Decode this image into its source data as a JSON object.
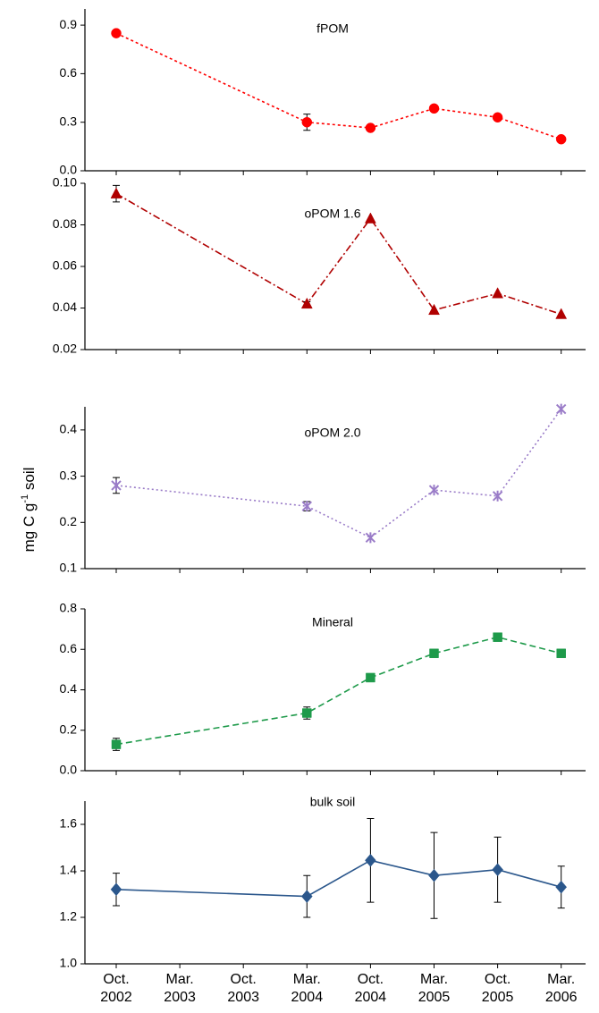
{
  "y_label": {
    "text": "mg C g",
    "sup": "-1",
    "rest": " soil"
  },
  "categories": [
    "Oct. 2002",
    "Mar. 2003",
    "Oct. 2003",
    "Mar. 2004",
    "Oct. 2004",
    "Mar. 2005",
    "Oct. 2005",
    "Mar. 2006"
  ],
  "chart_data": [
    {
      "type": "line",
      "title": "fPOM",
      "color": "#ff0000",
      "marker": "circle",
      "dash": "3 3",
      "x": [
        "Oct. 2002",
        "Mar. 2004",
        "Oct. 2004",
        "Mar. 2005",
        "Oct. 2005",
        "Mar. 2006"
      ],
      "values": [
        0.85,
        0.3,
        0.265,
        0.385,
        0.33,
        0.195
      ],
      "errors": [
        0.01,
        0.05,
        null,
        null,
        null,
        null
      ],
      "ylim": [
        0,
        1.0
      ],
      "yticks": [
        {
          "value": 0,
          "label": "0.0"
        },
        0.3,
        0.6,
        0.9
      ]
    },
    {
      "type": "line",
      "title": "oPOM 1.6",
      "color": "#b00000",
      "marker": "triangle",
      "dash": "8 3 2 3",
      "x": [
        "Oct. 2002",
        "Mar. 2004",
        "Oct. 2004",
        "Mar. 2005",
        "Oct. 2005",
        "Mar. 2006"
      ],
      "values": [
        0.095,
        0.042,
        0.083,
        0.039,
        0.047,
        0.037
      ],
      "errors": [
        0.004,
        0.001,
        null,
        null,
        null,
        null
      ],
      "ylim": [
        0.02,
        0.1
      ],
      "yticks": [
        0.02,
        0.04,
        0.06,
        0.08,
        {
          "value": 0.1,
          "label": "0.10"
        }
      ]
    },
    {
      "type": "line",
      "title": "oPOM 2.0",
      "color": "#9a7cc8",
      "marker": "cross",
      "dash": "2 3",
      "x": [
        "Oct. 2002",
        "Mar. 2004",
        "Oct. 2004",
        "Mar. 2005",
        "Oct. 2005",
        "Mar. 2006"
      ],
      "values": [
        0.28,
        0.235,
        0.167,
        0.27,
        0.257,
        0.445
      ],
      "errors": [
        0.017,
        0.01,
        null,
        null,
        null,
        null
      ],
      "ylim": [
        0.1,
        0.45
      ],
      "yticks": [
        0.1,
        0.2,
        0.3,
        0.4
      ]
    },
    {
      "type": "line",
      "title": "Mineral",
      "color": "#1e9a4a",
      "marker": "square",
      "dash": "7 4",
      "x": [
        "Oct. 2002",
        "Mar. 2004",
        "Oct. 2004",
        "Mar. 2005",
        "Oct. 2005",
        "Mar. 2006"
      ],
      "values": [
        0.13,
        0.285,
        0.46,
        0.58,
        0.66,
        0.58
      ],
      "errors": [
        0.03,
        0.03,
        null,
        null,
        null,
        null
      ],
      "ylim": [
        0,
        0.8
      ],
      "yticks": [
        {
          "value": 0,
          "label": "0.0"
        },
        0.2,
        0.4,
        0.6,
        0.8
      ]
    },
    {
      "type": "line",
      "title": "bulk soil",
      "color": "#2b578c",
      "marker": "diamond",
      "dash": "none",
      "x": [
        "Oct. 2002",
        "Mar. 2004",
        "Oct. 2004",
        "Mar. 2005",
        "Oct. 2005",
        "Mar. 2006"
      ],
      "values": [
        1.32,
        1.29,
        1.445,
        1.38,
        1.405,
        1.33
      ],
      "errors": [
        0.07,
        0.09,
        0.18,
        0.185,
        0.14,
        0.09
      ],
      "ylim": [
        1.0,
        1.7
      ],
      "yticks": [
        {
          "value": 1.0,
          "label": "1.0"
        },
        1.2,
        1.4,
        1.6
      ]
    }
  ]
}
